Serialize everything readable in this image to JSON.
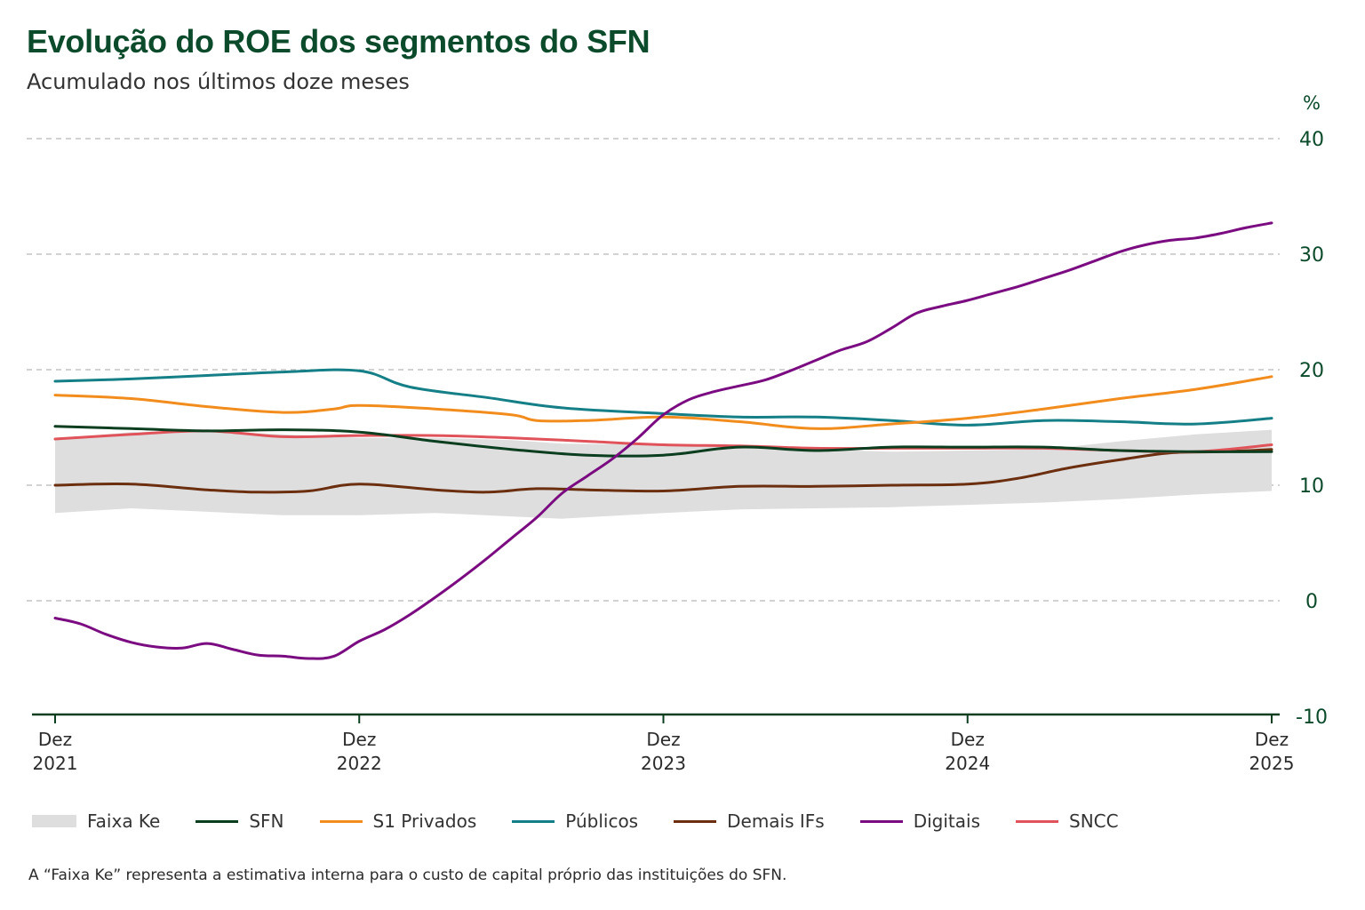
{
  "title": "Evolução do ROE dos segmentos do SFN",
  "subtitle": "Acumulado nos últimos doze meses",
  "footnote": "A “Faixa Ke” representa a estimativa interna para o custo de capital próprio das instituições do SFN.",
  "chart_data": {
    "type": "line",
    "y_unit_label": "%",
    "ylim": [
      -10,
      40
    ],
    "yticks": [
      "40",
      "30",
      "20",
      "10",
      "0",
      "-10"
    ],
    "xlim": [
      0,
      48
    ],
    "xticks": [
      {
        "line1": "Dez",
        "line2": "2021",
        "x": 0
      },
      {
        "line1": "Dez",
        "line2": "2022",
        "x": 12
      },
      {
        "line1": "Dez",
        "line2": "2023",
        "x": 24
      },
      {
        "line1": "Dez",
        "line2": "2024",
        "x": 36
      },
      {
        "line1": "Dez",
        "line2": "2025",
        "x": 48
      }
    ],
    "grid": "horizontal dashed",
    "legend_position": "bottom",
    "band": {
      "name": "Faixa Ke",
      "color": "#dedede",
      "x": [
        0,
        3,
        6,
        9,
        12,
        15,
        18,
        20,
        24,
        27,
        30,
        33,
        36,
        39,
        42,
        45,
        48
      ],
      "lower": [
        7.6,
        8.0,
        7.7,
        7.4,
        7.4,
        7.6,
        7.3,
        7.1,
        7.6,
        7.9,
        8.0,
        8.1,
        8.3,
        8.5,
        8.8,
        9.2,
        9.5
      ],
      "upper": [
        14.0,
        14.6,
        14.7,
        14.4,
        14.1,
        14.1,
        13.9,
        13.6,
        13.5,
        13.4,
        13.1,
        12.9,
        13.0,
        13.1,
        13.8,
        14.4,
        14.8
      ]
    },
    "series": [
      {
        "name": "SFN",
        "color": "#0b3d1f",
        "x": [
          0,
          3,
          6,
          9,
          12,
          15,
          18,
          21,
          24,
          27,
          30,
          33,
          36,
          39,
          42,
          45,
          48
        ],
        "values": [
          15.1,
          14.9,
          14.7,
          14.8,
          14.6,
          13.8,
          13.1,
          12.6,
          12.6,
          13.3,
          13.0,
          13.3,
          13.3,
          13.3,
          13.0,
          12.9,
          12.9
        ]
      },
      {
        "name": "S1 Privados",
        "color": "#f28c1c",
        "x": [
          0,
          3,
          6,
          9,
          11,
          12,
          15,
          18,
          19,
          21,
          24,
          27,
          30,
          33,
          36,
          39,
          42,
          45,
          48
        ],
        "values": [
          17.8,
          17.5,
          16.8,
          16.3,
          16.6,
          16.9,
          16.6,
          16.1,
          15.6,
          15.6,
          15.9,
          15.5,
          14.9,
          15.3,
          15.8,
          16.6,
          17.5,
          18.3,
          19.4
        ]
      },
      {
        "name": "Públicos",
        "color": "#147f86",
        "x": [
          0,
          3,
          6,
          9,
          12,
          14,
          17,
          20,
          24,
          27,
          30,
          33,
          36,
          39,
          42,
          45,
          48
        ],
        "values": [
          19.0,
          19.2,
          19.5,
          19.8,
          19.9,
          18.5,
          17.6,
          16.7,
          16.2,
          15.9,
          15.9,
          15.6,
          15.2,
          15.6,
          15.5,
          15.3,
          15.8
        ]
      },
      {
        "name": "Demais IFs",
        "color": "#6b2e0e",
        "x": [
          0,
          3,
          6,
          8,
          10,
          12,
          15,
          17,
          19,
          21,
          24,
          27,
          30,
          33,
          36,
          38,
          40,
          42,
          44,
          46,
          48
        ],
        "values": [
          10.0,
          10.1,
          9.6,
          9.4,
          9.5,
          10.1,
          9.6,
          9.4,
          9.7,
          9.6,
          9.5,
          9.9,
          9.9,
          10.0,
          10.1,
          10.6,
          11.5,
          12.2,
          12.8,
          12.9,
          13.1
        ]
      },
      {
        "name": "Digitais",
        "color": "#7a0b80",
        "x": [
          0,
          1,
          2,
          3,
          4,
          5,
          6,
          7,
          8,
          9,
          10,
          11,
          12,
          13,
          14,
          15,
          16,
          17,
          18,
          19,
          20,
          21,
          22,
          23,
          24,
          25,
          26,
          27,
          28,
          29,
          30,
          31,
          32,
          33,
          34,
          35,
          36,
          37,
          38,
          39,
          40,
          41,
          42,
          43,
          44,
          45,
          46,
          47,
          48
        ],
        "values": [
          -1.5,
          -2.0,
          -2.9,
          -3.6,
          -4.0,
          -4.1,
          -3.7,
          -4.2,
          -4.7,
          -4.8,
          -5.0,
          -4.8,
          -3.5,
          -2.5,
          -1.2,
          0.3,
          1.9,
          3.6,
          5.4,
          7.2,
          9.3,
          10.8,
          12.3,
          14.1,
          16.1,
          17.4,
          18.1,
          18.6,
          19.1,
          19.9,
          20.8,
          21.7,
          22.4,
          23.6,
          24.9,
          25.5,
          26.0,
          26.6,
          27.2,
          27.9,
          28.6,
          29.4,
          30.2,
          30.8,
          31.2,
          31.4,
          31.8,
          32.3,
          32.7
        ]
      },
      {
        "name": "SNCC",
        "color": "#e0535a",
        "x": [
          0,
          3,
          6,
          9,
          12,
          15,
          18,
          21,
          24,
          27,
          30,
          33,
          36,
          39,
          42,
          45,
          48
        ],
        "values": [
          14.0,
          14.4,
          14.7,
          14.2,
          14.3,
          14.3,
          14.1,
          13.8,
          13.5,
          13.4,
          13.2,
          13.2,
          13.2,
          13.2,
          13.0,
          12.9,
          13.5
        ]
      }
    ]
  }
}
